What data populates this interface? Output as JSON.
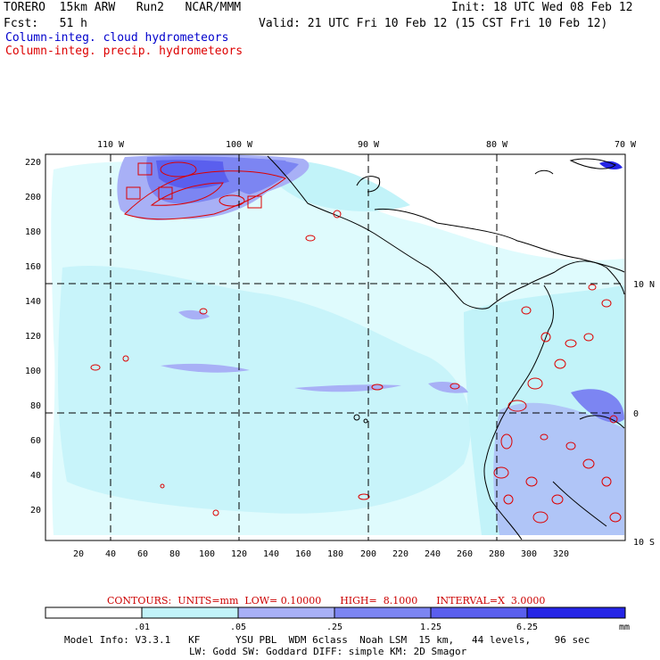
{
  "header": {
    "model": "TORERO  15km ARW   Run2   NCAR/MMM",
    "init": "Init: 18 UTC Wed 08 Feb 12",
    "fcst": "Fcst:   51 h",
    "valid": "Valid: 21 UTC Fri 10 Feb 12 (15 CST Fri 10 Feb 12)",
    "legend_cloud": "Column-integ. cloud hydrometeors",
    "legend_precip": "Column-integ. precip. hydrometeors"
  },
  "map": {
    "lon_labels": [
      "110 W",
      "100 W",
      "90 W",
      "80 W",
      "70 W"
    ],
    "lat_labels": [
      "10 N",
      "0",
      "10 S"
    ],
    "y_ticks": [
      "220",
      "200",
      "180",
      "160",
      "140",
      "120",
      "100",
      "80",
      "60",
      "40",
      "20"
    ],
    "x_ticks": [
      "20",
      "40",
      "60",
      "80",
      "100",
      "120",
      "140",
      "160",
      "180",
      "200",
      "220",
      "240",
      "260",
      "280",
      "300",
      "320"
    ]
  },
  "contour_info": "CONTOURS:  UNITS=mm  LOW= 0.10000      HIGH=  8.1000      INTERVAL=X  3.0000",
  "colorbar": {
    "labels": [
      ".01",
      ".05",
      ".25",
      "1.25",
      "6.25"
    ],
    "unit": "mm",
    "colors": [
      "#ffffff",
      "#dffbfd",
      "#c2f3f9",
      "#a8b0f6",
      "#7c85f2",
      "#5a5fee",
      "#2525e6"
    ]
  },
  "footer": {
    "line1": "Model Info: V3.3.1   KF      YSU PBL  WDM 6class  Noah LSM  15 km,   44 levels,    96 sec",
    "line2": "LW: Godd SW: Goddard DIFF: simple KM: 2D Smagor"
  }
}
